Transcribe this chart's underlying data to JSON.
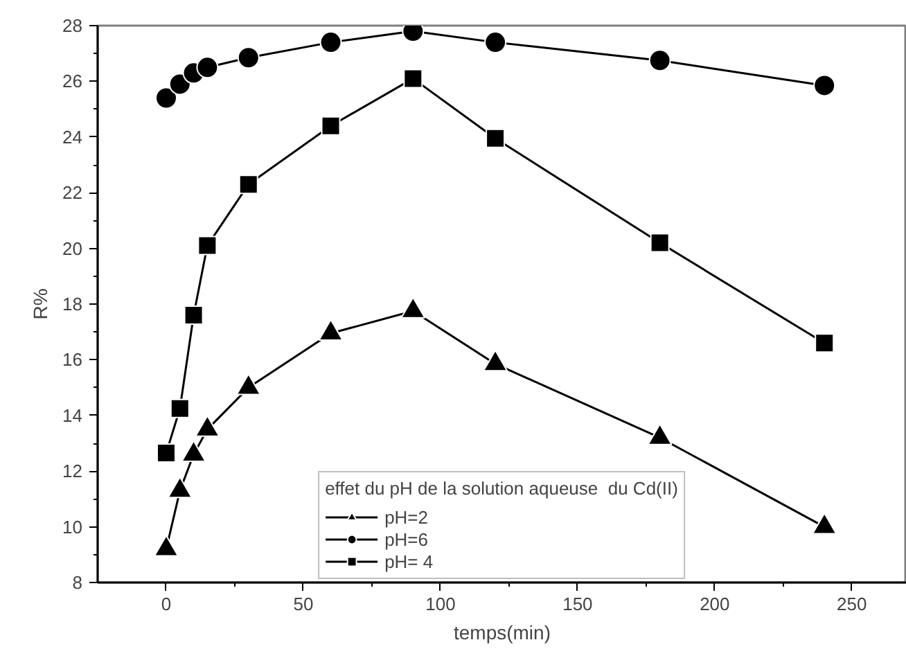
{
  "chart_data": {
    "type": "line",
    "xlabel": "temps(min)",
    "ylabel": "R%",
    "legend_title": "effet du pH de la solution aqueuse  du Cd(II)",
    "legend": "bottom",
    "grid": false,
    "x": [
      0,
      5,
      10,
      15,
      30,
      60,
      90,
      120,
      180,
      240
    ],
    "xlim": [
      -25,
      270
    ],
    "xticks": [
      0,
      50,
      100,
      150,
      200,
      250
    ],
    "ylim": [
      8,
      28
    ],
    "yticks": [
      8,
      10,
      12,
      14,
      16,
      18,
      20,
      22,
      24,
      26,
      28
    ],
    "series": [
      {
        "name": "pH=2",
        "color": "#000000",
        "marker": "triangle",
        "values": [
          9.2,
          11.3,
          12.6,
          13.5,
          15.0,
          16.95,
          17.75,
          15.85,
          13.2,
          10.0
        ]
      },
      {
        "name": "pH=6",
        "color": "#000000",
        "marker": "circle",
        "values": [
          25.4,
          25.9,
          26.3,
          26.5,
          26.85,
          27.4,
          27.8,
          27.4,
          26.75,
          25.85
        ]
      },
      {
        "name": "pH= 4",
        "color": "#000000",
        "marker": "square",
        "values": [
          12.65,
          14.25,
          17.6,
          20.1,
          22.3,
          24.4,
          26.1,
          23.95,
          20.2,
          16.6
        ]
      }
    ]
  }
}
